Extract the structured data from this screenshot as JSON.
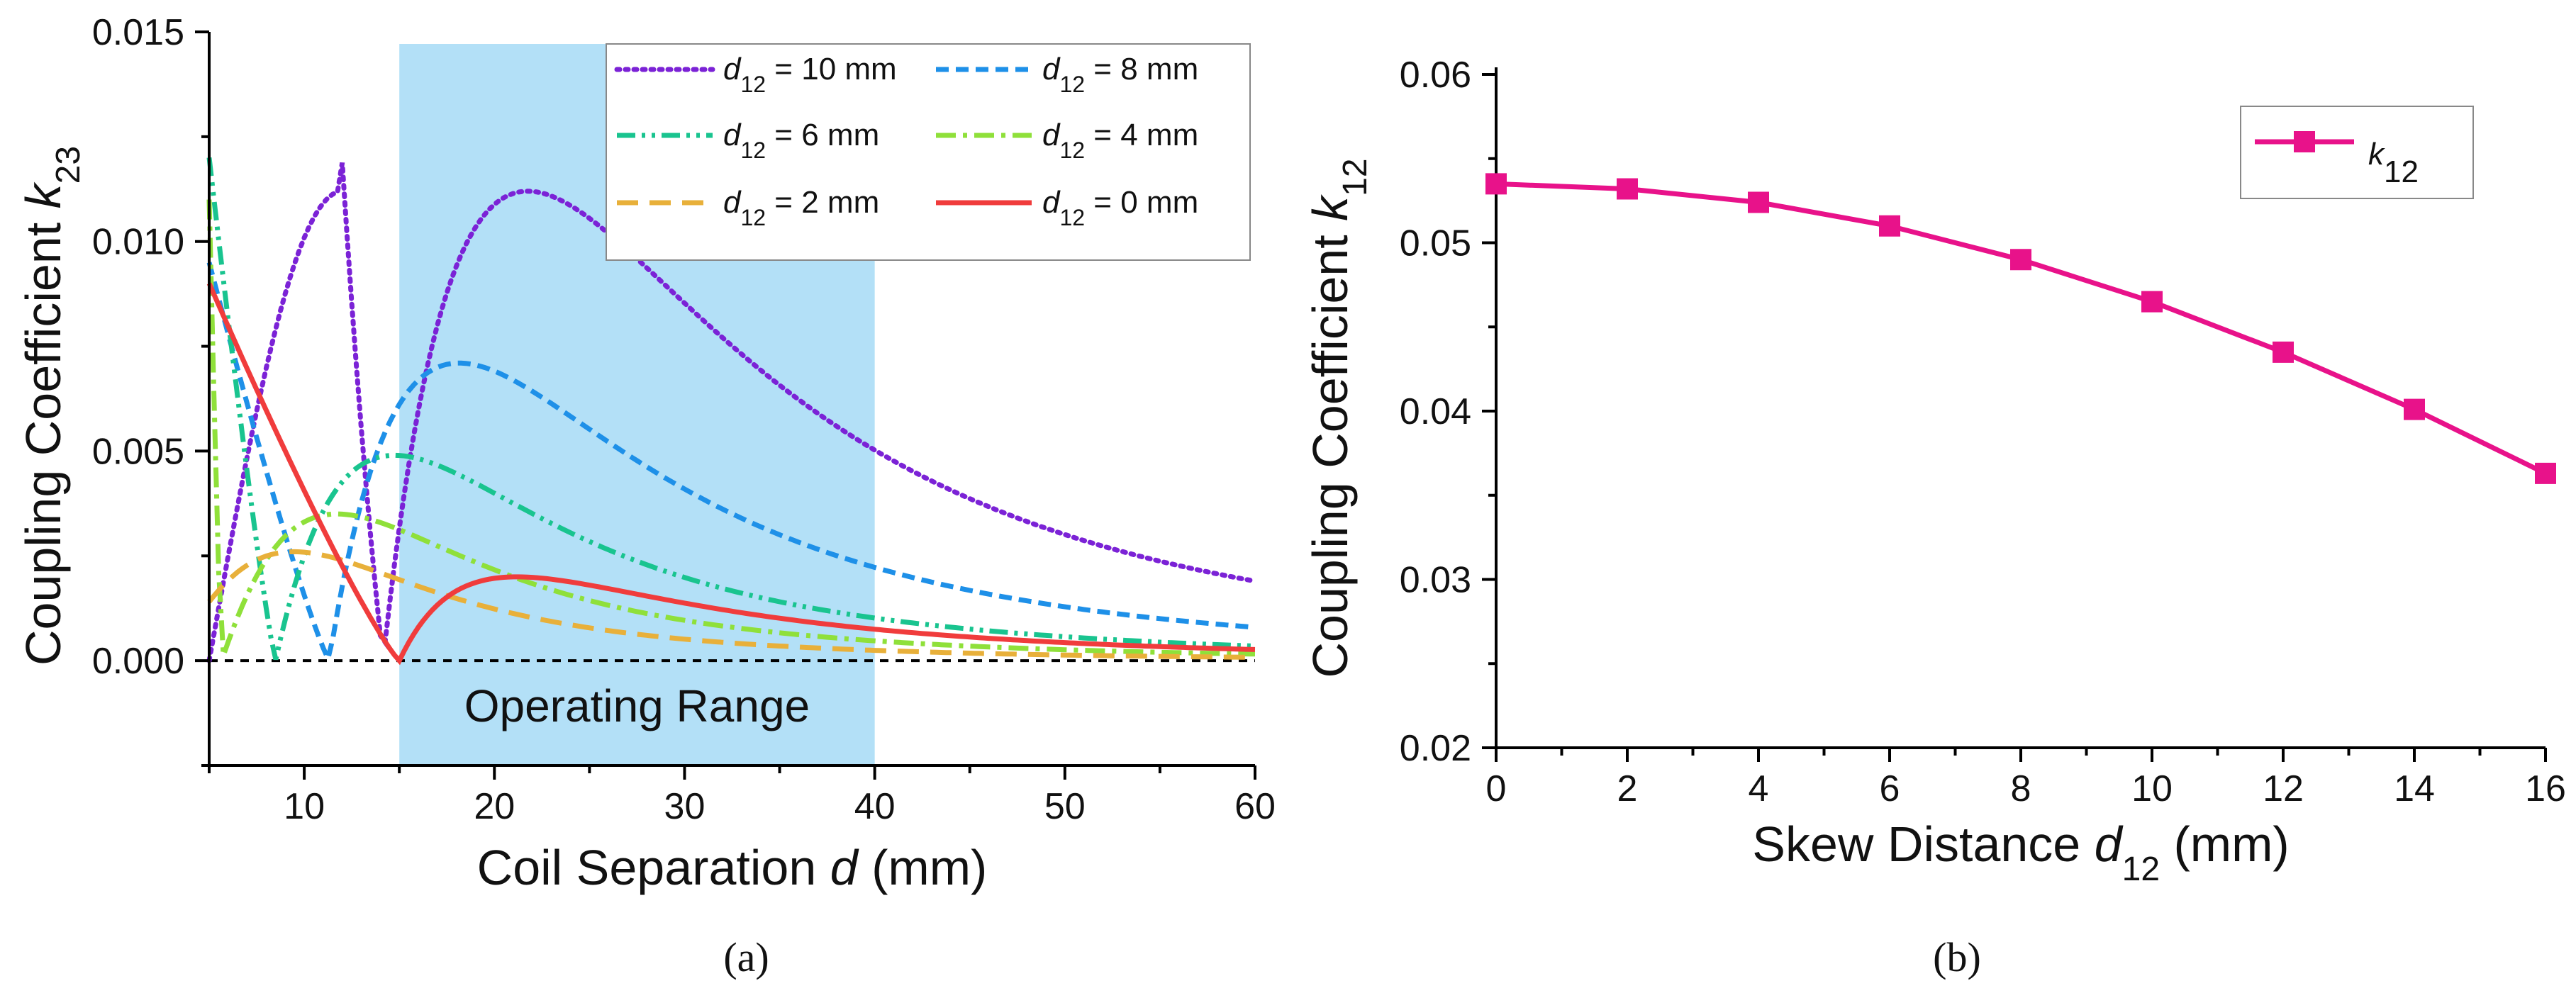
{
  "chart_data": [
    {
      "panel": "a",
      "caption": "(a)",
      "type": "line",
      "xlabel": {
        "prefix": "Coil Separation ",
        "var": "d",
        "suffix": " (mm)"
      },
      "ylabel": {
        "prefix": "Coupling Coefficient ",
        "var": "k",
        "sub": "23"
      },
      "xlim": [
        5,
        60
      ],
      "ylim": [
        -0.0025,
        0.015
      ],
      "xticks": [
        "10",
        "20",
        "30",
        "40",
        "50",
        "60"
      ],
      "yticks": [
        "0.000",
        "0.005",
        "0.010",
        "0.015"
      ],
      "shaded_region": {
        "x": [
          15,
          40
        ],
        "label": "Operating Range",
        "color": "#b3e0f7"
      },
      "zero_line": true,
      "legend_position": "top-right",
      "series": [
        {
          "name": "d12 = 10 mm",
          "label_var": "d",
          "label_sub": "12",
          "label_rest": " = 10 mm",
          "color": "#7b22d6",
          "dash": "dot",
          "skew": 10
        },
        {
          "name": "d12 = 8 mm",
          "label_var": "d",
          "label_sub": "12",
          "label_rest": " = 8 mm",
          "color": "#1e90e8",
          "dash": "dash",
          "skew": 8
        },
        {
          "name": "d12 = 6 mm",
          "label_var": "d",
          "label_sub": "12",
          "label_rest": " = 6 mm",
          "color": "#19c48f",
          "dash": "dashdotdot",
          "skew": 6
        },
        {
          "name": "d12 = 4 mm",
          "label_var": "d",
          "label_sub": "12",
          "label_rest": " = 4 mm",
          "color": "#8fe03a",
          "dash": "dashdot",
          "skew": 4
        },
        {
          "name": "d12 = 2 mm",
          "label_var": "d",
          "label_sub": "12",
          "label_rest": " = 2 mm",
          "color": "#e8b03a",
          "dash": "longdash",
          "skew": 2
        },
        {
          "name": "d12 = 0 mm",
          "label_var": "d",
          "label_sub": "12",
          "label_rest": " = 0 mm",
          "color": "#f03c3c",
          "dash": "solid",
          "skew": 0
        }
      ]
    },
    {
      "panel": "b",
      "caption": "(b)",
      "type": "line",
      "xlabel": {
        "prefix": "Skew Distance ",
        "var": "d",
        "sub": "12",
        "suffix": " (mm)"
      },
      "ylabel": {
        "prefix": "Coupling Coefficient ",
        "var": "k",
        "sub": "12"
      },
      "xlim": [
        0,
        16
      ],
      "ylim": [
        0.02,
        0.06
      ],
      "xticks": [
        "0",
        "2",
        "4",
        "6",
        "8",
        "10",
        "12",
        "14",
        "16"
      ],
      "yticks": [
        "0.02",
        "0.03",
        "0.04",
        "0.05",
        "0.06"
      ],
      "legend_position": "top-right",
      "series": [
        {
          "name": "k12",
          "label_var": "k",
          "label_sub": "12",
          "color": "#e8128a",
          "marker": "square",
          "x": [
            0,
            2,
            4,
            6,
            8,
            10,
            12,
            14,
            16
          ],
          "y": [
            0.0535,
            0.0532,
            0.0524,
            0.051,
            0.049,
            0.0465,
            0.0435,
            0.0401,
            0.0363
          ]
        }
      ]
    }
  ]
}
